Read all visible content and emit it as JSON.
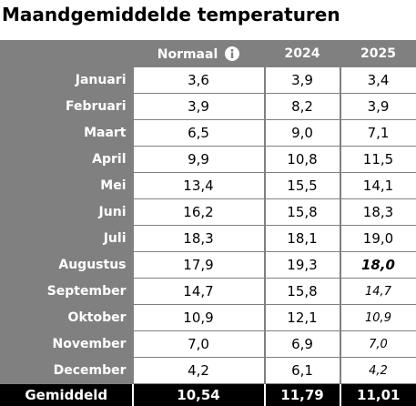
{
  "header": {
    "title": "Maandgemiddelde temperaturen"
  },
  "table": {
    "columns": [
      "Normaal",
      "2024",
      "2025"
    ],
    "rows": [
      [
        "Januari",
        "3,6",
        "3,9",
        "3,4"
      ],
      [
        "Februari",
        "3,9",
        "8,2",
        "3,9"
      ],
      [
        "Maart",
        "6,5",
        "9,0",
        "7,1"
      ],
      [
        "April",
        "9,9",
        "10,8",
        "11,5"
      ],
      [
        "Mei",
        "13,4",
        "15,5",
        "14,1"
      ],
      [
        "Juni",
        "16,2",
        "15,8",
        "18,3"
      ],
      [
        "Juli",
        "18,3",
        "18,1",
        "19,0"
      ],
      [
        "Augustus",
        "17,9",
        "19,3",
        "18,0"
      ],
      [
        "September",
        "14,7",
        "15,8",
        "14,7"
      ],
      [
        "Oktober",
        "10,9",
        "12,1",
        "10,9"
      ],
      [
        "November",
        "7,0",
        "6,9",
        "7,0"
      ],
      [
        "December",
        "4,2",
        "6,1",
        "4,2"
      ]
    ],
    "footer": [
      "Gemiddeld",
      "10,54",
      "11,79",
      "11,01"
    ]
  }
}
